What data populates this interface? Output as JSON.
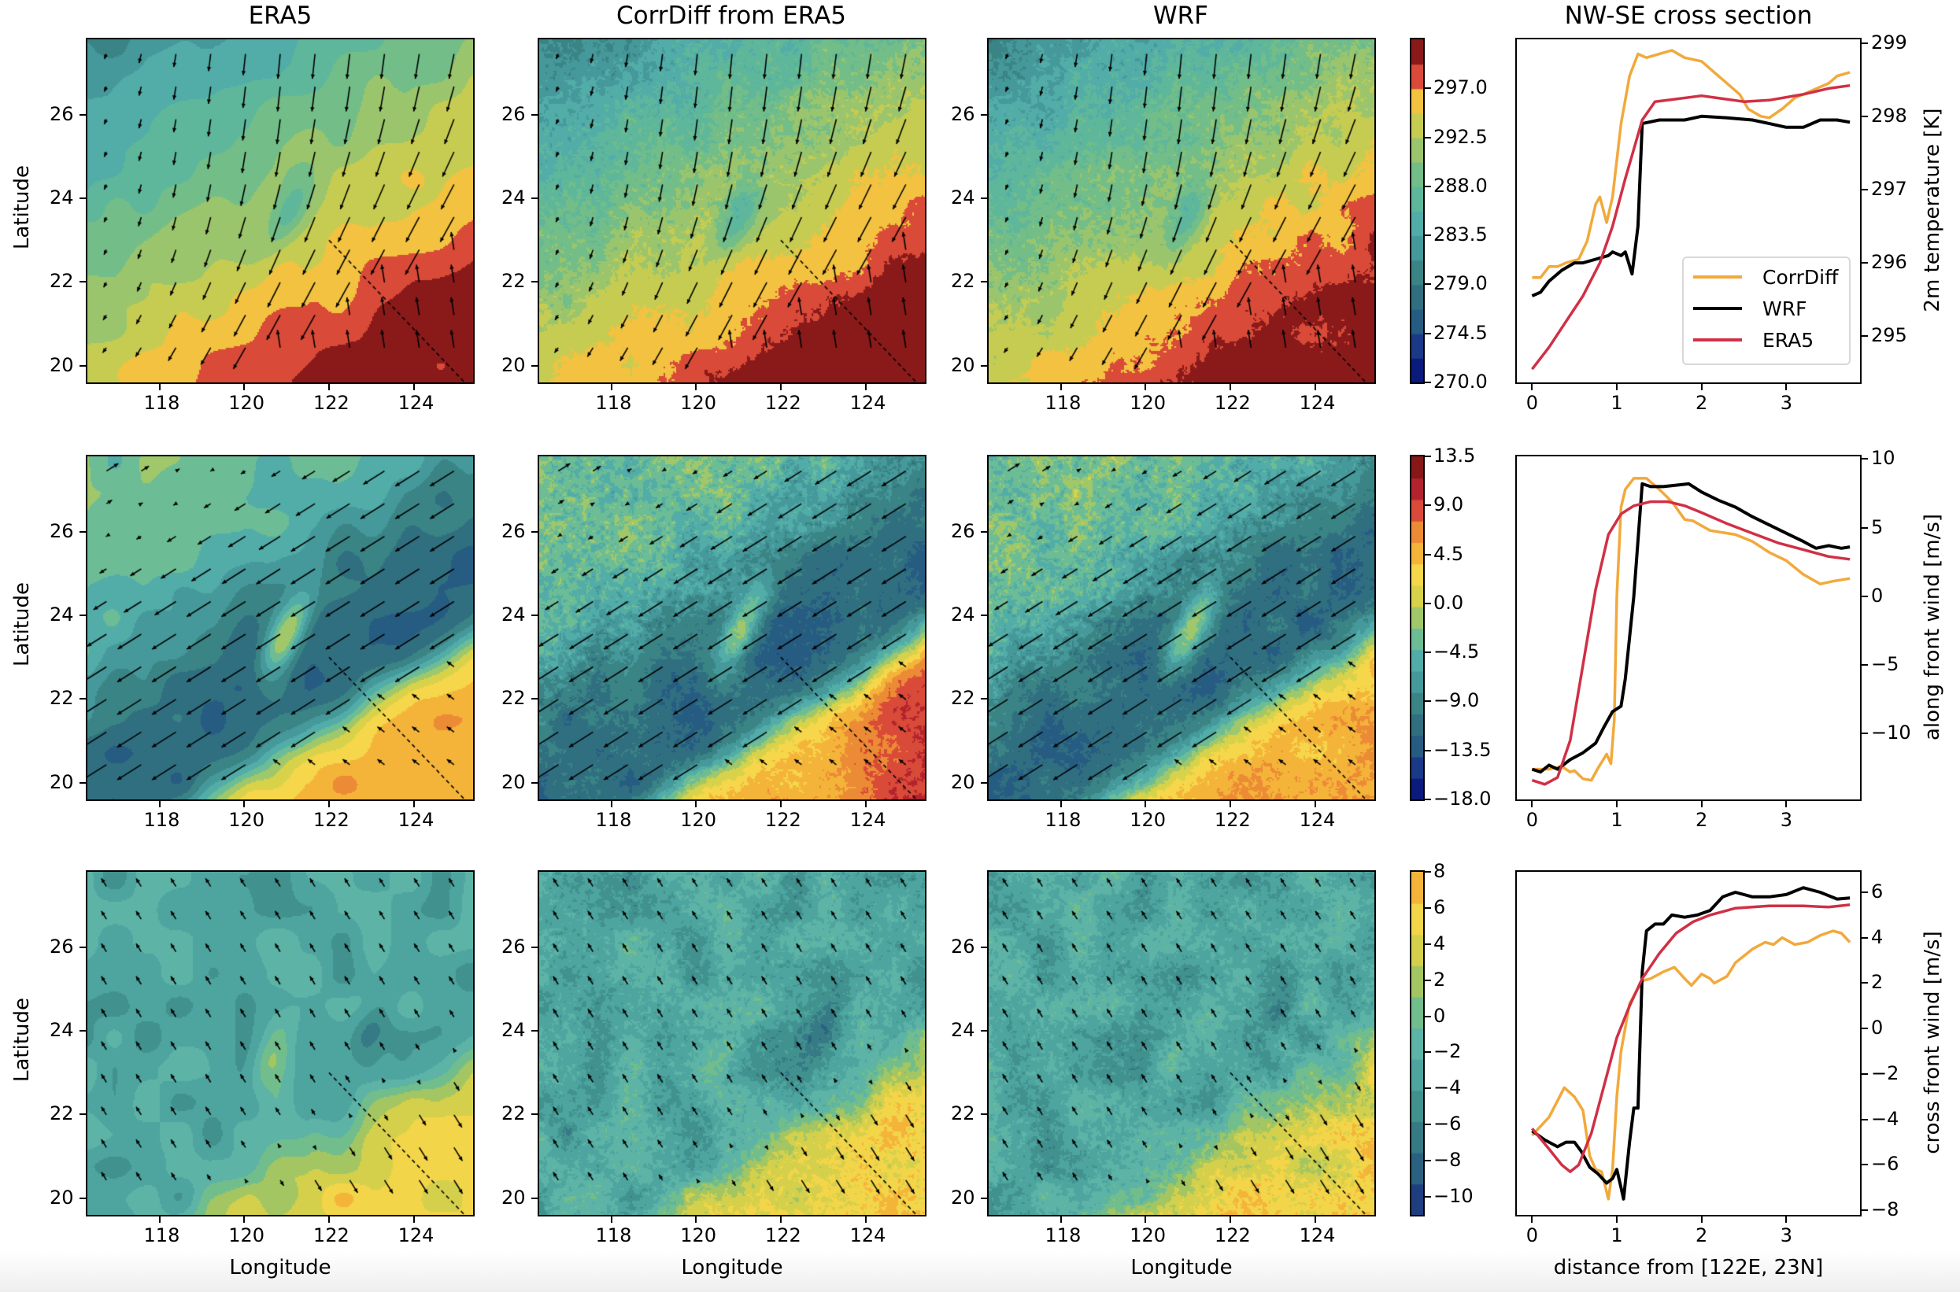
{
  "column_titles": [
    "ERA5",
    "CorrDiff from ERA5",
    "WRF",
    "NW-SE cross section"
  ],
  "map_axes": {
    "lon_range": [
      116.3,
      125.4
    ],
    "lat_range": [
      19.6,
      27.8
    ],
    "x_ticks": [
      "118",
      "120",
      "122",
      "124"
    ],
    "y_ticks": [
      "20",
      "22",
      "24",
      "26"
    ],
    "xlabel": "Longitude",
    "ylabel": "Latitude",
    "cross_section_line": {
      "start": [
        122,
        23
      ],
      "end": [
        125.2,
        19.6
      ]
    }
  },
  "colorbars": [
    {
      "variable": "2m temperature",
      "range": [
        270.0,
        301.5
      ],
      "ticks": [
        "270.0",
        "274.5",
        "279.0",
        "283.5",
        "288.0",
        "292.5",
        "297.0"
      ],
      "colors": [
        "#0a1a7d",
        "#1a3a88",
        "#265c82",
        "#306f80",
        "#3a8485",
        "#46999a",
        "#52aca8",
        "#5fb79b",
        "#72bd88",
        "#9bc56c",
        "#c6cc52",
        "#f2c240",
        "#d94a38",
        "#8a1a1a"
      ]
    },
    {
      "variable": "along front wind",
      "range": [
        -18.0,
        13.5
      ],
      "ticks": [
        "−18.0",
        "−13.5",
        "−9.0",
        "−4.5",
        "0.0",
        "4.5",
        "9.0",
        "13.5"
      ],
      "colors": [
        "#0a1a7d",
        "#1a3a88",
        "#265c82",
        "#306f80",
        "#3a8485",
        "#46999a",
        "#52aca8",
        "#6cbd95",
        "#a0c86a",
        "#d8d24a",
        "#f6d64a",
        "#f4b43a",
        "#ec8b35",
        "#d94a38",
        "#b3232e",
        "#861818"
      ]
    },
    {
      "variable": "cross front wind",
      "range": [
        -11,
        8
      ],
      "ticks": [
        "−10",
        "−8",
        "−6",
        "−4",
        "−2",
        "0",
        "2",
        "4",
        "6",
        "8"
      ],
      "colors": [
        "#1e3e80",
        "#2a6080",
        "#357a84",
        "#41918f",
        "#4ea59f",
        "#5cb3a6",
        "#72bd8c",
        "#a3c662",
        "#d4d04c",
        "#f2d548",
        "#f4b43a"
      ]
    }
  ],
  "cross_sections": [
    {
      "ylabel": "2m temperature [K]",
      "ylim": [
        294.37,
        299.05
      ],
      "y_ticks": [
        "295",
        "296",
        "297",
        "298",
        "299"
      ],
      "show_legend": true
    },
    {
      "ylabel": "along front wind [m/s]",
      "ylim": [
        -14.8,
        10.2
      ],
      "y_ticks": [
        "−10",
        "−5",
        "0",
        "5",
        "10"
      ],
      "show_legend": false
    },
    {
      "ylabel": "cross front wind [m/s]",
      "ylim": [
        -8.2,
        6.9
      ],
      "y_ticks": [
        "−8",
        "−6",
        "−4",
        "−2",
        "0",
        "2",
        "4",
        "6"
      ],
      "show_legend": false
    }
  ],
  "cross_x": {
    "xlim": [
      -0.18,
      3.87
    ],
    "x_ticks": [
      "0",
      "1",
      "2",
      "3"
    ],
    "xlabel": "distance from [122E, 23N]"
  },
  "legend": [
    {
      "name": "CorrDiff",
      "color": "#f2a93b"
    },
    {
      "name": "WRF",
      "color": "#000000"
    },
    {
      "name": "ERA5",
      "color": "#d03045"
    }
  ],
  "chart_data": [
    {
      "type": "line",
      "title": "NW-SE cross section",
      "ylabel": "2m temperature [K]",
      "xlabel": "",
      "series": [
        {
          "name": "CorrDiff",
          "x": [
            0,
            0.1,
            0.2,
            0.3,
            0.4,
            0.55,
            0.65,
            0.75,
            0.8,
            0.88,
            0.95,
            1.05,
            1.15,
            1.25,
            1.35,
            1.5,
            1.65,
            1.8,
            2.0,
            2.15,
            2.3,
            2.45,
            2.55,
            2.7,
            2.8,
            2.95,
            3.1,
            3.3,
            3.5,
            3.6,
            3.75
          ],
          "y": [
            295.8,
            295.8,
            295.95,
            295.95,
            296.0,
            296.05,
            296.3,
            296.8,
            296.9,
            296.55,
            296.9,
            297.9,
            298.55,
            298.85,
            298.8,
            298.85,
            298.9,
            298.8,
            298.75,
            298.6,
            298.45,
            298.3,
            298.1,
            298.0,
            297.98,
            298.1,
            298.25,
            298.35,
            298.45,
            298.55,
            298.6
          ]
        },
        {
          "name": "WRF",
          "x": [
            0,
            0.1,
            0.2,
            0.35,
            0.5,
            0.6,
            0.75,
            0.9,
            0.95,
            1.05,
            1.1,
            1.18,
            1.25,
            1.3,
            1.5,
            1.8,
            2.0,
            2.3,
            2.6,
            2.8,
            3.0,
            3.2,
            3.4,
            3.6,
            3.75
          ],
          "y": [
            295.55,
            295.6,
            295.75,
            295.9,
            296.0,
            296.0,
            296.05,
            296.1,
            296.15,
            296.1,
            296.15,
            295.85,
            296.5,
            297.9,
            297.95,
            297.95,
            298.0,
            297.98,
            297.95,
            297.9,
            297.85,
            297.85,
            297.95,
            297.95,
            297.92
          ]
        },
        {
          "name": "ERA5",
          "x": [
            0,
            0.2,
            0.4,
            0.6,
            0.8,
            0.95,
            1.1,
            1.2,
            1.3,
            1.45,
            1.6,
            2.0,
            2.5,
            2.8,
            3.2,
            3.5,
            3.75
          ],
          "y": [
            294.55,
            294.85,
            295.2,
            295.55,
            296.0,
            296.5,
            297.15,
            297.55,
            297.95,
            298.2,
            298.22,
            298.28,
            298.2,
            298.22,
            298.3,
            298.38,
            298.42
          ]
        }
      ]
    },
    {
      "type": "line",
      "ylabel": "along front wind [m/s]",
      "xlabel": "",
      "series": [
        {
          "name": "CorrDiff",
          "x": [
            0,
            0.2,
            0.35,
            0.45,
            0.5,
            0.6,
            0.7,
            0.78,
            0.88,
            0.93,
            0.97,
            1.0,
            1.05,
            1.1,
            1.2,
            1.35,
            1.5,
            1.65,
            1.8,
            1.9,
            2.1,
            2.4,
            2.6,
            2.8,
            3.0,
            3.2,
            3.4,
            3.55,
            3.75
          ],
          "y": [
            -12.6,
            -12.6,
            -12.4,
            -12.8,
            -12.7,
            -13.3,
            -13.4,
            -12.5,
            -11.5,
            -12.2,
            -9,
            0,
            6.5,
            7.8,
            8.6,
            8.6,
            7.8,
            6.9,
            5.6,
            5.5,
            4.8,
            4.5,
            4.0,
            3.2,
            2.6,
            1.6,
            0.9,
            1.1,
            1.3
          ]
        },
        {
          "name": "WRF",
          "x": [
            0,
            0.1,
            0.2,
            0.3,
            0.45,
            0.6,
            0.75,
            0.85,
            0.95,
            1.05,
            1.1,
            1.2,
            1.3,
            1.4,
            1.55,
            1.7,
            1.85,
            2.0,
            2.2,
            2.4,
            2.6,
            2.8,
            3.0,
            3.2,
            3.35,
            3.5,
            3.65,
            3.75
          ],
          "y": [
            -12.6,
            -12.8,
            -12.3,
            -12.6,
            -11.9,
            -11.4,
            -10.7,
            -9.5,
            -8.4,
            -8.0,
            -6,
            0,
            8.2,
            8.0,
            8.0,
            8.1,
            8.2,
            7.6,
            7.0,
            6.5,
            5.8,
            5.2,
            4.6,
            4.0,
            3.5,
            3.7,
            3.5,
            3.6
          ]
        },
        {
          "name": "ERA5",
          "x": [
            0,
            0.15,
            0.3,
            0.45,
            0.6,
            0.75,
            0.9,
            1.05,
            1.2,
            1.4,
            1.6,
            1.8,
            2.0,
            2.3,
            2.6,
            2.9,
            3.2,
            3.5,
            3.75
          ],
          "y": [
            -13.4,
            -13.7,
            -13.2,
            -10.5,
            -5,
            0.5,
            4.5,
            6.0,
            6.6,
            6.9,
            6.9,
            6.6,
            6.1,
            5.3,
            4.6,
            3.9,
            3.4,
            2.9,
            2.7
          ]
        }
      ]
    },
    {
      "type": "line",
      "ylabel": "cross front wind [m/s]",
      "xlabel": "distance from [122E, 23N]",
      "series": [
        {
          "name": "CorrDiff",
          "x": [
            0,
            0.2,
            0.38,
            0.5,
            0.6,
            0.68,
            0.75,
            0.82,
            0.9,
            0.95,
            1.0,
            1.05,
            1.15,
            1.3,
            1.4,
            1.55,
            1.68,
            1.8,
            1.88,
            2.0,
            2.1,
            2.15,
            2.3,
            2.4,
            2.6,
            2.75,
            2.85,
            2.95,
            3.1,
            3.25,
            3.4,
            3.55,
            3.65,
            3.75
          ],
          "y": [
            -4.7,
            -3.9,
            -2.6,
            -3.0,
            -3.6,
            -5.6,
            -6.2,
            -6.3,
            -7.5,
            -6.2,
            -3,
            -1,
            1.1,
            2.1,
            2.2,
            2.5,
            2.7,
            2.2,
            1.9,
            2.4,
            2.2,
            2.0,
            2.3,
            2.9,
            3.5,
            3.8,
            3.7,
            4.0,
            3.7,
            3.8,
            4.1,
            4.3,
            4.2,
            3.8
          ]
        },
        {
          "name": "WRF",
          "x": [
            0,
            0.15,
            0.3,
            0.4,
            0.5,
            0.58,
            0.68,
            0.78,
            0.88,
            0.95,
            1.0,
            1.05,
            1.08,
            1.15,
            1.2,
            1.25,
            1.3,
            1.35,
            1.45,
            1.55,
            1.65,
            1.8,
            1.95,
            2.1,
            2.25,
            2.4,
            2.6,
            2.8,
            3.0,
            3.2,
            3.4,
            3.6,
            3.75
          ],
          "y": [
            -4.5,
            -4.9,
            -5.2,
            -5.0,
            -5.0,
            -5.4,
            -6.1,
            -6.4,
            -6.8,
            -6.6,
            -6.2,
            -7.0,
            -7.5,
            -5,
            -3.5,
            -3.5,
            2.5,
            4.3,
            4.6,
            4.6,
            5.0,
            4.9,
            5.0,
            5.2,
            5.8,
            6.0,
            5.8,
            5.8,
            5.9,
            6.2,
            6.0,
            5.7,
            5.75
          ]
        },
        {
          "name": "ERA5",
          "x": [
            0,
            0.2,
            0.35,
            0.45,
            0.55,
            0.7,
            0.85,
            1.0,
            1.15,
            1.3,
            1.5,
            1.7,
            1.9,
            2.1,
            2.4,
            2.8,
            3.2,
            3.5,
            3.75
          ],
          "y": [
            -4.4,
            -5.3,
            -6.0,
            -6.3,
            -6.0,
            -4.6,
            -2.5,
            -0.4,
            1.0,
            2.2,
            3.3,
            4.2,
            4.7,
            5.0,
            5.3,
            5.4,
            5.4,
            5.35,
            5.45
          ]
        }
      ]
    }
  ]
}
